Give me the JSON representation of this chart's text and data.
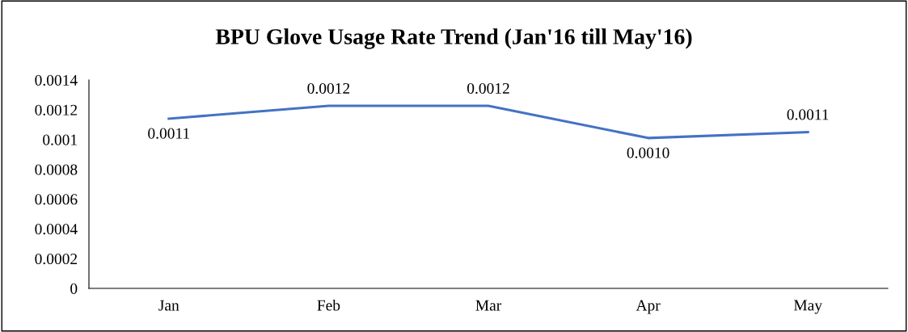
{
  "chart_data": {
    "type": "line",
    "title": "BPU Glove Usage Rate Trend (Jan'16 till May'16)",
    "categories": [
      "Jan",
      "Feb",
      "Mar",
      "Apr",
      "May"
    ],
    "series": [
      {
        "color": "#4472c4",
        "values": [
          0.00114,
          0.001226,
          0.001226,
          0.00101,
          0.00105
        ],
        "value_labels": [
          "0.0011",
          "0.0012",
          "0.0012",
          "0.0010",
          "0.0011"
        ]
      }
    ],
    "ylim": [
      0,
      0.0014
    ],
    "yticks": [
      0,
      {
        "value": 0.0002,
        "label": "0.0002"
      },
      {
        "value": 0.0004,
        "label": "0.0004"
      },
      {
        "value": 0.0006,
        "label": "0.0006"
      },
      {
        "value": 0.0008,
        "label": "0.0008"
      },
      {
        "value": 0.001,
        "label": "0.001"
      },
      {
        "value": 0.0012,
        "label": "0.0012"
      },
      {
        "value": 0.0014,
        "label": "0.0014"
      }
    ],
    "grid": false,
    "legend": false,
    "marker": "none",
    "line_style": "solid"
  }
}
